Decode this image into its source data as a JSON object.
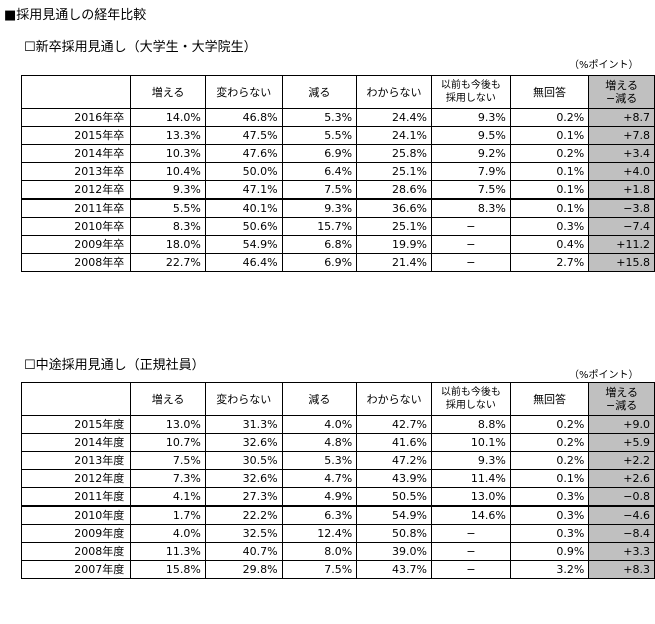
{
  "main_title": "■採用見通しの経年比較",
  "unit_label": "（%ポイント）",
  "headers": [
    "",
    "増える",
    "変わらない",
    "減る",
    "わからない",
    "以前も今後も採用しない",
    "無回答",
    "増える−減る"
  ],
  "header_lines": {
    "never_1": "以前も今後も",
    "never_2": "採用しない",
    "diff_1": "増える",
    "diff_2": "−減る"
  },
  "table1": {
    "title": "☐新卒採用見通し（大学生・大学院生）",
    "rows": [
      {
        "label": "2016年卒",
        "values": [
          "14.0%",
          "46.8%",
          "5.3%",
          "24.4%",
          "9.3%",
          "0.2%",
          "+8.7"
        ]
      },
      {
        "label": "2015年卒",
        "values": [
          "13.3%",
          "47.5%",
          "5.5%",
          "24.1%",
          "9.5%",
          "0.1%",
          "+7.8"
        ]
      },
      {
        "label": "2014年卒",
        "values": [
          "10.3%",
          "47.6%",
          "6.9%",
          "25.8%",
          "9.2%",
          "0.2%",
          "+3.4"
        ]
      },
      {
        "label": "2013年卒",
        "values": [
          "10.4%",
          "50.0%",
          "6.4%",
          "25.1%",
          "7.9%",
          "0.1%",
          "+4.0"
        ]
      },
      {
        "label": "2012年卒",
        "values": [
          "9.3%",
          "47.1%",
          "7.5%",
          "28.6%",
          "7.5%",
          "0.1%",
          "+1.8"
        ]
      },
      {
        "label": "2011年卒",
        "values": [
          "5.5%",
          "40.1%",
          "9.3%",
          "36.6%",
          "8.3%",
          "0.1%",
          "−3.8"
        ]
      },
      {
        "label": "2010年卒",
        "values": [
          "8.3%",
          "50.6%",
          "15.7%",
          "25.1%",
          "−",
          "0.3%",
          "−7.4"
        ]
      },
      {
        "label": "2009年卒",
        "values": [
          "18.0%",
          "54.9%",
          "6.8%",
          "19.9%",
          "−",
          "0.4%",
          "+11.2"
        ]
      },
      {
        "label": "2008年卒",
        "values": [
          "22.7%",
          "46.4%",
          "6.9%",
          "21.4%",
          "−",
          "2.7%",
          "+15.8"
        ]
      }
    ]
  },
  "table2": {
    "title": "☐中途採用見通し（正規社員）",
    "rows": [
      {
        "label": "2015年度",
        "values": [
          "13.0%",
          "31.3%",
          "4.0%",
          "42.7%",
          "8.8%",
          "0.2%",
          "+9.0"
        ]
      },
      {
        "label": "2014年度",
        "values": [
          "10.7%",
          "32.6%",
          "4.8%",
          "41.6%",
          "10.1%",
          "0.2%",
          "+5.9"
        ]
      },
      {
        "label": "2013年度",
        "values": [
          "7.5%",
          "30.5%",
          "5.3%",
          "47.2%",
          "9.3%",
          "0.2%",
          "+2.2"
        ]
      },
      {
        "label": "2012年度",
        "values": [
          "7.3%",
          "32.6%",
          "4.7%",
          "43.9%",
          "11.4%",
          "0.1%",
          "+2.6"
        ]
      },
      {
        "label": "2011年度",
        "values": [
          "4.1%",
          "27.3%",
          "4.9%",
          "50.5%",
          "13.0%",
          "0.3%",
          "−0.8"
        ]
      },
      {
        "label": "2010年度",
        "values": [
          "1.7%",
          "22.2%",
          "6.3%",
          "54.9%",
          "14.6%",
          "0.3%",
          "−4.6"
        ]
      },
      {
        "label": "2009年度",
        "values": [
          "4.0%",
          "32.5%",
          "12.4%",
          "50.8%",
          "−",
          "0.3%",
          "−8.4"
        ]
      },
      {
        "label": "2008年度",
        "values": [
          "11.3%",
          "40.7%",
          "8.0%",
          "39.0%",
          "−",
          "0.9%",
          "+3.3"
        ]
      },
      {
        "label": "2007年度",
        "values": [
          "15.8%",
          "29.8%",
          "7.5%",
          "43.7%",
          "−",
          "3.2%",
          "+8.3"
        ]
      }
    ]
  }
}
